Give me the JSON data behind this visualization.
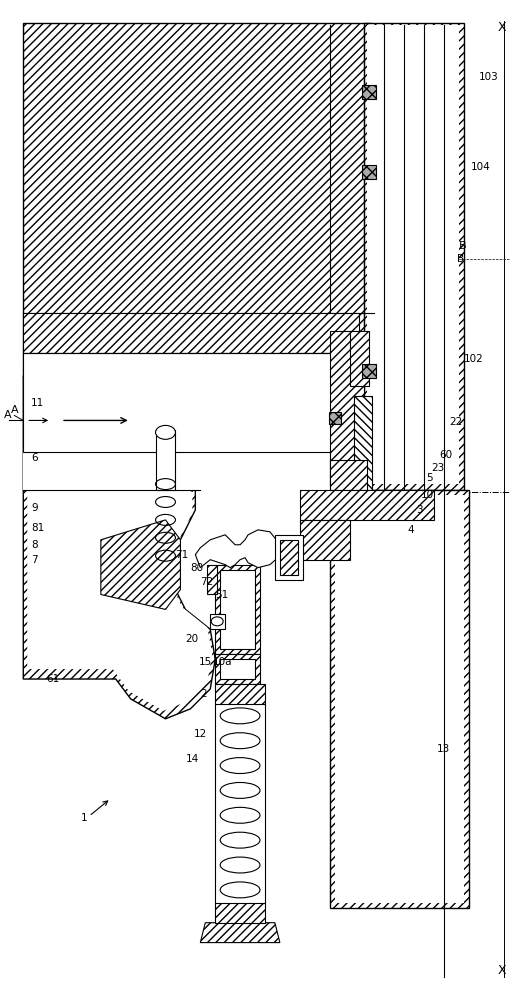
{
  "bg_color": "#ffffff",
  "line_color": "#000000",
  "fig_width": 5.15,
  "fig_height": 10.0,
  "dpi": 100,
  "hatch_dense": "////",
  "hatch_cross": "xxxx",
  "labels": {
    "X": "X",
    "A": "A",
    "B": "B",
    "n1": "1",
    "n2": "2",
    "n3": "3",
    "n4": "4",
    "n5": "5",
    "n6": "6",
    "n7": "7",
    "n8": "8",
    "n9": "9",
    "n10": "10",
    "n10a": "10a",
    "n11": "11",
    "n12": "12",
    "n13": "13",
    "n14": "14",
    "n15": "15",
    "n20": "20",
    "n22": "22",
    "n23": "23",
    "n51": "51",
    "n60": "60",
    "n61": "61",
    "n71": "71",
    "n72": "72",
    "n80": "80",
    "n81": "81",
    "n102": "102",
    "n103": "103",
    "n104": "104"
  }
}
